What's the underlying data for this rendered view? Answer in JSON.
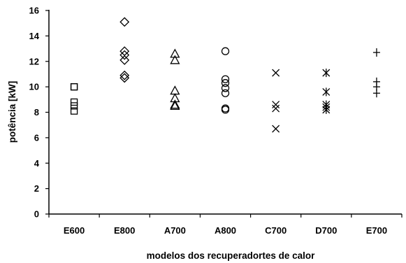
{
  "chart_data": {
    "type": "scatter",
    "title": "",
    "xlabel": "modelos dos recuperadortes de calor",
    "ylabel": "potência [kW]",
    "ylim": [
      0,
      16
    ],
    "yticks": [
      0,
      2,
      4,
      6,
      8,
      10,
      12,
      14,
      16
    ],
    "categories": [
      "E600",
      "E800",
      "A700",
      "A800",
      "C700",
      "D700",
      "E700"
    ],
    "grid": false,
    "legend": "none",
    "series": [
      {
        "category": "E600",
        "marker": "square",
        "values": [
          10.0,
          10.0,
          8.8,
          8.5,
          8.1
        ]
      },
      {
        "category": "E800",
        "marker": "diamond",
        "values": [
          15.1,
          12.8,
          12.5,
          12.1,
          10.9,
          10.7
        ]
      },
      {
        "category": "A700",
        "marker": "triangle",
        "values": [
          12.6,
          12.1,
          9.7,
          9.1,
          8.6,
          8.5
        ]
      },
      {
        "category": "A800",
        "marker": "circle",
        "values": [
          12.8,
          10.6,
          10.3,
          9.9,
          9.5,
          8.3,
          8.2
        ]
      },
      {
        "category": "C700",
        "marker": "x",
        "values": [
          11.1,
          8.6,
          8.3,
          6.7
        ]
      },
      {
        "category": "D700",
        "marker": "asterisk",
        "values": [
          11.1,
          9.6,
          8.6,
          8.4,
          8.2
        ]
      },
      {
        "category": "E700",
        "marker": "plus",
        "values": [
          12.7,
          10.4,
          10.0,
          9.5
        ]
      }
    ]
  }
}
